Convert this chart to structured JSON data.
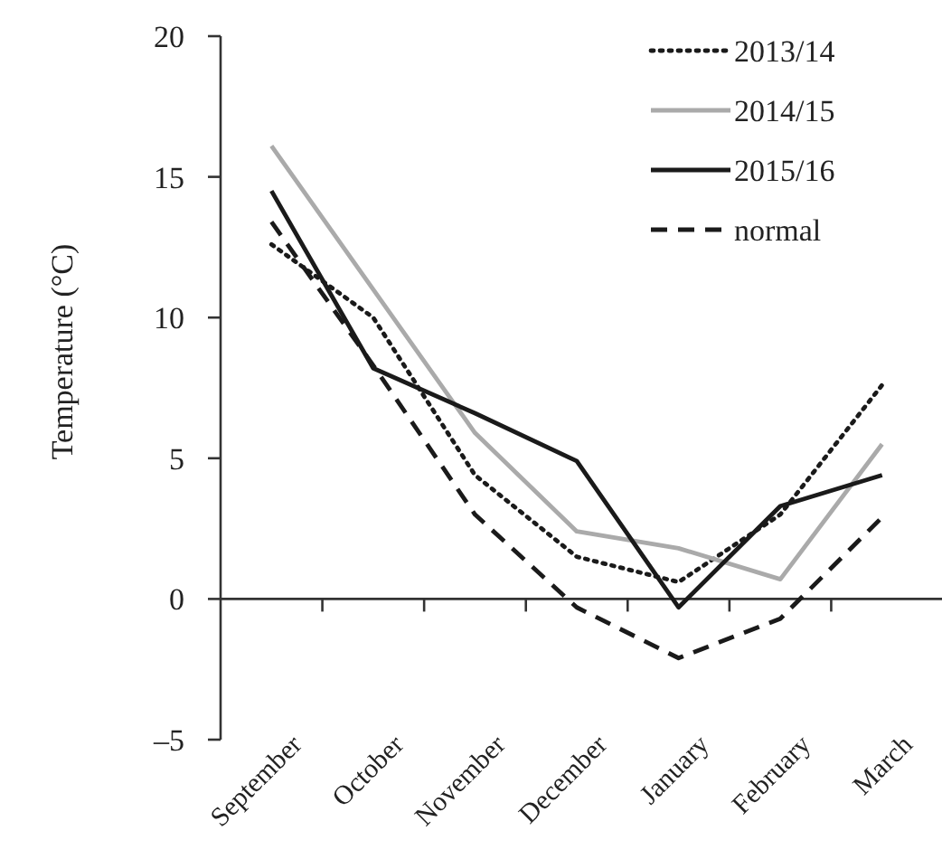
{
  "chart_data": {
    "type": "line",
    "ylabel": "Temperature (°C)",
    "categories": [
      "September",
      "October",
      "November",
      "December",
      "January",
      "February",
      "March"
    ],
    "ylim": [
      -5,
      20
    ],
    "yticks": [
      {
        "value": -5,
        "label": "–5"
      },
      0,
      5,
      10,
      15,
      20
    ],
    "legend": "top right",
    "marker": "none",
    "series": [
      {
        "name": "2013/14",
        "color": "#1a1a1a",
        "line_style": "dotted",
        "values": [
          12.6,
          10.0,
          4.4,
          1.5,
          0.6,
          3.0,
          7.6
        ]
      },
      {
        "name": "2014/15",
        "color": "#aaaaaa",
        "line_style": "solid",
        "values": [
          16.1,
          11.0,
          5.9,
          2.4,
          1.8,
          0.7,
          5.5
        ]
      },
      {
        "name": "2015/16",
        "color": "#1a1a1a",
        "line_style": "solid",
        "values": [
          14.5,
          8.2,
          6.6,
          4.9,
          -0.3,
          3.3,
          4.4
        ]
      },
      {
        "name": "normal",
        "color": "#1a1a1a",
        "line_style": "dashed",
        "values": [
          13.4,
          8.3,
          3.0,
          -0.3,
          -2.1,
          -0.7,
          2.9
        ]
      }
    ]
  }
}
